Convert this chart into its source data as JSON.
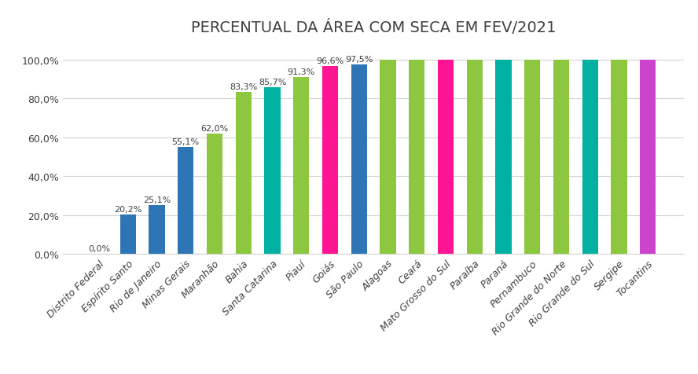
{
  "categories": [
    "Distrito Federal",
    "Espírito Santo",
    "Rio de Janeiro",
    "Minas Gerais",
    "Maranhão",
    "Bahia",
    "Santa Catarina",
    "Piauí",
    "Goiás",
    "São Paulo",
    "Alagoas",
    "Ceará",
    "Mato Grosso do Sul",
    "Paraíba",
    "Paraná",
    "Pernambuco",
    "Rio Grande do Norte",
    "Rio Grande do Sul",
    "Sergipe",
    "Tocantins"
  ],
  "values": [
    0.0,
    20.2,
    25.1,
    55.1,
    62.0,
    83.3,
    85.7,
    91.3,
    96.6,
    97.5,
    100.0,
    100.0,
    100.0,
    100.0,
    100.0,
    100.0,
    100.0,
    100.0,
    100.0,
    100.0
  ],
  "colors": [
    "#2E75B6",
    "#2E75B6",
    "#2E75B6",
    "#2E75B6",
    "#8DC63F",
    "#8DC63F",
    "#00B0A0",
    "#8DC63F",
    "#FF1493",
    "#2E75B6",
    "#8DC63F",
    "#8DC63F",
    "#FF1493",
    "#8DC63F",
    "#00B0A0",
    "#8DC63F",
    "#8DC63F",
    "#00B0A0",
    "#8DC63F",
    "#CC44CC"
  ],
  "labels": [
    "0,0%",
    "20,2%",
    "25,1%",
    "55,1%",
    "62,0%",
    "83,3%",
    "85,7%",
    "91,3%",
    "96,6%",
    "97,5%",
    "",
    "",
    "",
    "",
    "",
    "",
    "",
    "",
    "",
    ""
  ],
  "title": "PERCENTUAL DA ÁREA COM SECA EM FEV/2021",
  "yticks": [
    0,
    20,
    40,
    60,
    80,
    100
  ],
  "ytick_labels": [
    "0,0%",
    "20,0%",
    "40,0%",
    "60,0%",
    "80,0%",
    "100,0%"
  ],
  "ylim": [
    0,
    108
  ],
  "background_color": "#FFFFFF",
  "grid_color": "#D3D3D3",
  "title_fontsize": 14,
  "label_fontsize": 8,
  "tick_fontsize": 9,
  "bar_width": 0.55
}
